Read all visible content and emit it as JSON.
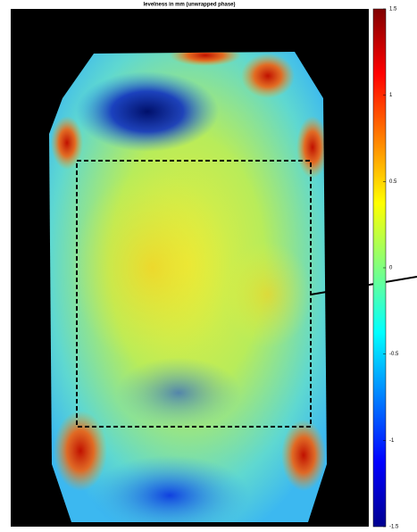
{
  "chart_data": {
    "type": "heatmap",
    "title": "levelness in mm (unwrapped phase)",
    "colormap": "jet",
    "clim": [
      -1.5,
      1.5
    ],
    "cticks": [
      -1.5,
      -1,
      -0.5,
      0,
      0.5,
      1,
      1.5
    ]
  }
}
